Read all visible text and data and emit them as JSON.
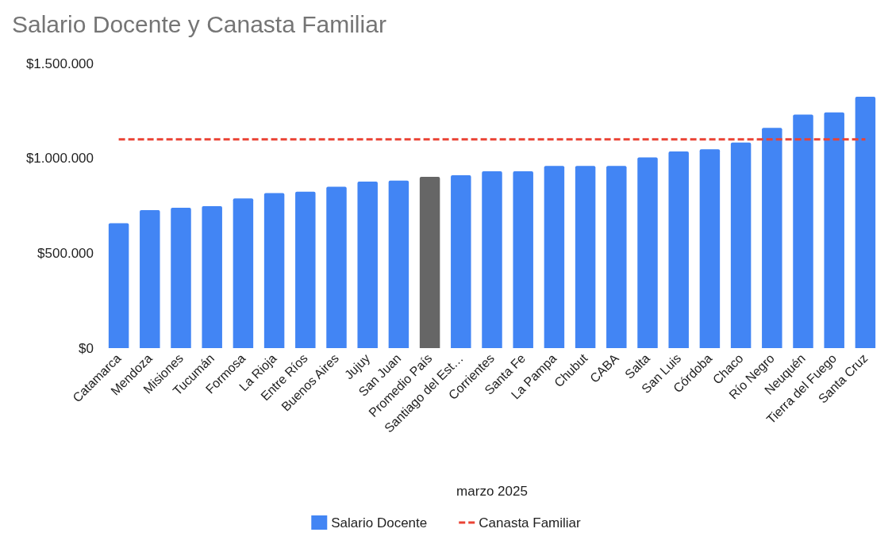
{
  "chart_data": {
    "type": "bar",
    "title": "Salario Docente y Canasta Familiar",
    "xlabel": "marzo 2025",
    "categories": [
      "Catamarca",
      "Mendoza",
      "Misiones",
      "Tucumán",
      "Formosa",
      "La Rioja",
      "Entre Ríos",
      "Buenos Aires",
      "Jujuy",
      "San Juan",
      "Promedio País",
      "Santiago del Est…",
      "Corrientes",
      "Santa Fe",
      "La Pampa",
      "Chubut",
      "CABA",
      "Salta",
      "San Luis",
      "Córdoba",
      "Chaco",
      "Río Negro",
      "Neuquén",
      "Tierra del Fuego",
      "Santa Cruz"
    ],
    "series": [
      {
        "name": "Salario Docente",
        "color": "#4285f4",
        "colors": [
          "#4285f4",
          "#4285f4",
          "#4285f4",
          "#4285f4",
          "#4285f4",
          "#4285f4",
          "#4285f4",
          "#4285f4",
          "#4285f4",
          "#4285f4",
          "#666666",
          "#4285f4",
          "#4285f4",
          "#4285f4",
          "#4285f4",
          "#4285f4",
          "#4285f4",
          "#4285f4",
          "#4285f4",
          "#4285f4",
          "#4285f4",
          "#4285f4",
          "#4285f4",
          "#4285f4",
          "#4285f4"
        ],
        "values": [
          658000,
          727000,
          740000,
          748000,
          789000,
          817000,
          824000,
          850000,
          877000,
          883000,
          903000,
          911000,
          932000,
          932000,
          960000,
          960000,
          960000,
          1005000,
          1036000,
          1048000,
          1083000,
          1161000,
          1230000,
          1242000,
          1324000
        ]
      },
      {
        "name": "Canasta Familiar",
        "type": "line",
        "color": "#ea4335",
        "line_style": "dashed",
        "marker": "none",
        "values": [
          1100000,
          1100000,
          1100000,
          1100000,
          1100000,
          1100000,
          1100000,
          1100000,
          1100000,
          1100000,
          1100000,
          1100000,
          1100000,
          1100000,
          1100000,
          1100000,
          1100000,
          1100000,
          1100000,
          1100000,
          1100000,
          1100000,
          1100000,
          1100000,
          1100000
        ]
      }
    ],
    "ylim": [
      0,
      1500000
    ],
    "yticks": [
      {
        "value": 0,
        "label": "$0"
      },
      {
        "value": 500000,
        "label": "$500.000"
      },
      {
        "value": 1000000,
        "label": "$1.000.000"
      },
      {
        "value": 1500000,
        "label": "$1.500.000"
      }
    ],
    "grid": false,
    "legend": "bottom"
  }
}
